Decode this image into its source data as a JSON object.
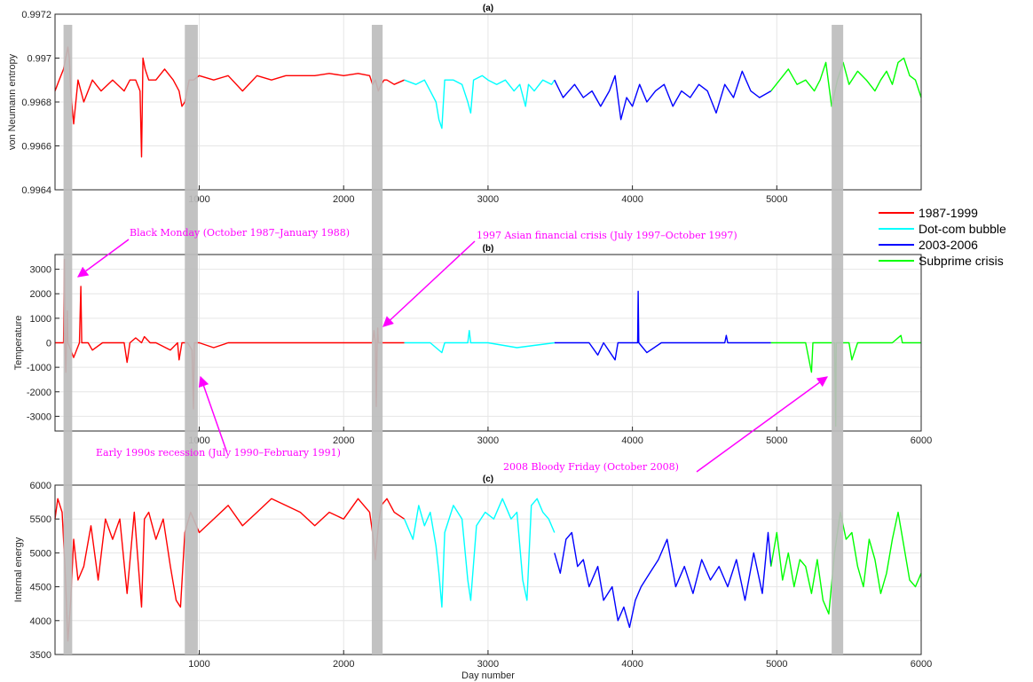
{
  "chart_data": [
    {
      "id": "a",
      "type": "line",
      "title": "(a)",
      "ylabel": "von Neumann entropy",
      "xlim": [
        1,
        6000
      ],
      "ylim": [
        0.9964,
        0.9972
      ],
      "yticks": [
        "0.9964",
        "0.9966",
        "0.9968",
        "0.997",
        "0.9972"
      ],
      "xticks": [
        "1000",
        "2000",
        "3000",
        "4000",
        "5000"
      ],
      "segments": [
        {
          "series": "1987-1999",
          "x": [
            1,
            30,
            60,
            90,
            100,
            110,
            130,
            160,
            200,
            260,
            320,
            400,
            480,
            520,
            560,
            590,
            600,
            610,
            625,
            650,
            700,
            760,
            820,
            860,
            880,
            900,
            930,
            960,
            1000,
            1100,
            1200,
            1300,
            1400,
            1500,
            1600,
            1700,
            1800,
            1900,
            2000,
            2100,
            2180,
            2200,
            2220,
            2240,
            2260,
            2280,
            2300,
            2350,
            2420
          ],
          "y": [
            0.99685,
            0.9969,
            0.99695,
            0.99705,
            0.997,
            0.99685,
            0.9967,
            0.9969,
            0.9968,
            0.9969,
            0.99685,
            0.9969,
            0.99685,
            0.9969,
            0.9969,
            0.99685,
            0.99655,
            0.997,
            0.99695,
            0.9969,
            0.9969,
            0.99695,
            0.9969,
            0.99685,
            0.99678,
            0.9968,
            0.9969,
            0.9969,
            0.99692,
            0.9969,
            0.99692,
            0.99685,
            0.99692,
            0.9969,
            0.99692,
            0.99692,
            0.99692,
            0.99693,
            0.99692,
            0.99693,
            0.99692,
            0.99688,
            0.9969,
            0.99685,
            0.99688,
            0.9969,
            0.9969,
            0.99688,
            0.9969
          ]
        },
        {
          "series": "Dot-com bubble",
          "x": [
            2420,
            2500,
            2560,
            2600,
            2640,
            2660,
            2680,
            2700,
            2760,
            2820,
            2860,
            2880,
            2900,
            2960,
            3000,
            3060,
            3120,
            3180,
            3220,
            3260,
            3280,
            3320,
            3380,
            3440,
            3460
          ],
          "y": [
            0.9969,
            0.99688,
            0.9969,
            0.99685,
            0.9968,
            0.99672,
            0.99668,
            0.9969,
            0.9969,
            0.99688,
            0.9968,
            0.99675,
            0.9969,
            0.99692,
            0.9969,
            0.99688,
            0.9969,
            0.99685,
            0.99688,
            0.99678,
            0.99688,
            0.99685,
            0.9969,
            0.99688,
            0.9969
          ]
        },
        {
          "series": "2003-2006",
          "x": [
            3460,
            3520,
            3560,
            3600,
            3660,
            3720,
            3780,
            3840,
            3880,
            3920,
            3960,
            4000,
            4050,
            4100,
            4160,
            4220,
            4280,
            4340,
            4400,
            4460,
            4520,
            4580,
            4640,
            4700,
            4760,
            4820,
            4880,
            4960
          ],
          "y": [
            0.9969,
            0.99682,
            0.99685,
            0.99688,
            0.99682,
            0.99685,
            0.99678,
            0.99685,
            0.99692,
            0.99672,
            0.99682,
            0.99678,
            0.99688,
            0.9968,
            0.99685,
            0.99688,
            0.99678,
            0.99685,
            0.99682,
            0.99688,
            0.99685,
            0.99675,
            0.99688,
            0.99682,
            0.99694,
            0.99685,
            0.99682,
            0.99685
          ]
        },
        {
          "series": "Subprime crisis",
          "x": [
            4960,
            5020,
            5080,
            5140,
            5200,
            5260,
            5300,
            5340,
            5380,
            5420,
            5460,
            5500,
            5560,
            5620,
            5680,
            5720,
            5760,
            5800,
            5840,
            5880,
            5920,
            5960,
            6000
          ],
          "y": [
            0.99685,
            0.9969,
            0.99695,
            0.99688,
            0.9969,
            0.99685,
            0.9969,
            0.99698,
            0.99678,
            0.9969,
            0.99698,
            0.99688,
            0.99694,
            0.9969,
            0.99685,
            0.9969,
            0.99694,
            0.99688,
            0.99698,
            0.997,
            0.99692,
            0.9969,
            0.99682
          ]
        }
      ]
    },
    {
      "id": "b",
      "type": "line",
      "title": "(b)",
      "ylabel": "Temperature",
      "xlim": [
        1,
        6000
      ],
      "ylim": [
        -3600,
        3600
      ],
      "yticks": [
        "-3000",
        "-2000",
        "-1000",
        "0",
        "1000",
        "2000",
        "3000"
      ],
      "xticks": [
        "1000",
        "2000",
        "3000",
        "4000",
        "5000",
        "6000"
      ],
      "segments": [
        {
          "series": "1987-1999",
          "x": [
            1,
            40,
            60,
            66,
            70,
            76,
            80,
            86,
            90,
            130,
            170,
            180,
            186,
            190,
            230,
            260,
            330,
            400,
            480,
            500,
            520,
            560,
            600,
            620,
            660,
            700,
            800,
            850,
            860,
            880,
            920,
            950,
            960,
            966,
            970,
            1000,
            1100,
            1200,
            1400,
            1600,
            1800,
            2000,
            2200,
            2210,
            2220,
            2226,
            2232,
            2236,
            2240,
            2300,
            2420
          ],
          "y": [
            0,
            0,
            0,
            3400,
            0,
            -1200,
            0,
            1300,
            0,
            -600,
            0,
            2300,
            0,
            0,
            0,
            -300,
            0,
            0,
            0,
            -800,
            0,
            200,
            0,
            250,
            0,
            0,
            -300,
            0,
            -700,
            0,
            0,
            -300,
            -2700,
            0,
            0,
            0,
            -200,
            0,
            0,
            0,
            0,
            0,
            0,
            500,
            0,
            -2600,
            0,
            600,
            0,
            0,
            0
          ]
        },
        {
          "series": "Dot-com bubble",
          "x": [
            2420,
            2600,
            2680,
            2700,
            2860,
            2870,
            2880,
            3000,
            3200,
            3460
          ],
          "y": [
            0,
            0,
            -400,
            0,
            0,
            500,
            0,
            0,
            -200,
            0
          ]
        },
        {
          "series": "2003-2006",
          "x": [
            3460,
            3700,
            3760,
            3800,
            3880,
            3900,
            4000,
            4036,
            4040,
            4044,
            4100,
            4200,
            4500,
            4640,
            4650,
            4660,
            4800,
            4960
          ],
          "y": [
            0,
            0,
            -500,
            0,
            -700,
            0,
            0,
            0,
            2100,
            0,
            -400,
            0,
            0,
            0,
            300,
            0,
            0,
            0
          ]
        },
        {
          "series": "Subprime crisis",
          "x": [
            4960,
            5200,
            5240,
            5250,
            5300,
            5400,
            5408,
            5412,
            5420,
            5500,
            5520,
            5560,
            5600,
            5800,
            5860,
            5870,
            5880,
            6000
          ],
          "y": [
            0,
            0,
            -1200,
            0,
            0,
            0,
            -3400,
            0,
            0,
            0,
            -700,
            0,
            0,
            0,
            300,
            0,
            0,
            0
          ]
        }
      ],
      "annotations": [
        "Black Monday (October 1987–January 1988)",
        "1997 Asian financial crisis (July 1997–October 1997)",
        "Early 1990s recession (July 1990–February 1991)",
        "2008 Bloody Friday (October 2008)"
      ]
    },
    {
      "id": "c",
      "type": "line",
      "title": "(c)",
      "ylabel": "Internal energy",
      "xlabel": "Day number",
      "xlim": [
        1,
        6000
      ],
      "ylim": [
        3500,
        6000
      ],
      "yticks": [
        "3500",
        "4000",
        "4500",
        "5000",
        "5500",
        "6000"
      ],
      "xticks": [
        "1000",
        "2000",
        "3000",
        "4000",
        "5000",
        "6000"
      ],
      "segments": [
        {
          "series": "1987-1999",
          "x": [
            1,
            20,
            50,
            70,
            90,
            110,
            130,
            160,
            200,
            250,
            300,
            350,
            400,
            450,
            500,
            550,
            600,
            620,
            650,
            700,
            750,
            800,
            840,
            870,
            900,
            940,
            980,
            1000,
            1100,
            1200,
            1300,
            1400,
            1500,
            1600,
            1700,
            1800,
            1900,
            2000,
            2100,
            2180,
            2200,
            2220,
            2240,
            2260,
            2300,
            2350,
            2420
          ],
          "y": [
            5500,
            5800,
            5600,
            4800,
            3700,
            4300,
            5200,
            4600,
            4800,
            5400,
            4600,
            5500,
            5200,
            5500,
            4400,
            5600,
            4200,
            5500,
            5600,
            5200,
            5500,
            4800,
            4300,
            4200,
            5300,
            5600,
            5400,
            5300,
            5500,
            5700,
            5400,
            5600,
            5800,
            5700,
            5600,
            5400,
            5600,
            5500,
            5800,
            5600,
            5300,
            4900,
            5400,
            5700,
            5800,
            5600,
            5500
          ]
        },
        {
          "series": "Dot-com bubble",
          "x": [
            2420,
            2480,
            2520,
            2560,
            2600,
            2640,
            2660,
            2680,
            2700,
            2760,
            2820,
            2860,
            2880,
            2920,
            2980,
            3040,
            3100,
            3160,
            3200,
            3240,
            3270,
            3300,
            3340,
            3380,
            3420,
            3460
          ],
          "y": [
            5500,
            5200,
            5700,
            5400,
            5600,
            5100,
            4700,
            4200,
            5300,
            5700,
            5500,
            4600,
            4300,
            5400,
            5600,
            5500,
            5800,
            5500,
            5600,
            4600,
            4300,
            5700,
            5800,
            5600,
            5500,
            5300
          ]
        },
        {
          "series": "2003-2006",
          "x": [
            3460,
            3500,
            3540,
            3580,
            3620,
            3660,
            3700,
            3760,
            3800,
            3860,
            3900,
            3940,
            3980,
            4020,
            4060,
            4120,
            4180,
            4240,
            4300,
            4360,
            4420,
            4480,
            4540,
            4600,
            4660,
            4720,
            4780,
            4840,
            4900,
            4940,
            4960
          ],
          "y": [
            5000,
            4700,
            5200,
            5300,
            4800,
            4900,
            4500,
            4800,
            4300,
            4500,
            4000,
            4200,
            3900,
            4300,
            4500,
            4700,
            4900,
            5200,
            4500,
            4800,
            4400,
            4900,
            4600,
            4800,
            4500,
            4900,
            4300,
            5000,
            4400,
            5300,
            4800
          ]
        },
        {
          "series": "Subprime crisis",
          "x": [
            4960,
            5000,
            5040,
            5080,
            5120,
            5160,
            5200,
            5240,
            5280,
            5320,
            5360,
            5400,
            5440,
            5480,
            5520,
            5560,
            5600,
            5640,
            5680,
            5720,
            5760,
            5800,
            5840,
            5880,
            5920,
            5960,
            6000
          ],
          "y": [
            4800,
            5300,
            4600,
            5000,
            4500,
            4900,
            4800,
            4400,
            4900,
            4300,
            4100,
            5000,
            5600,
            5200,
            5300,
            4800,
            4500,
            5200,
            4900,
            4400,
            4700,
            5200,
            5600,
            5100,
            4600,
            4500,
            4700
          ]
        }
      ]
    }
  ],
  "crisis_bands_x": [
    [
      60,
      120
    ],
    [
      900,
      990
    ],
    [
      2195,
      2270
    ],
    [
      5380,
      5460
    ]
  ],
  "legend": {
    "placement": "right",
    "items": [
      {
        "label": "1987-1999",
        "color": "#ff0000"
      },
      {
        "label": "Dot-com bubble",
        "color": "#00ffff"
      },
      {
        "label": "2003-2006",
        "color": "#0000ff"
      },
      {
        "label": "Subprime crisis",
        "color": "#00ff00"
      }
    ]
  },
  "colors": {
    "1987-1999": "#ff0000",
    "Dot-com bubble": "#00ffff",
    "2003-2006": "#0000ff",
    "Subprime crisis": "#00ff00",
    "annotation": "#ff00ff",
    "band": "#bdbdbd"
  }
}
